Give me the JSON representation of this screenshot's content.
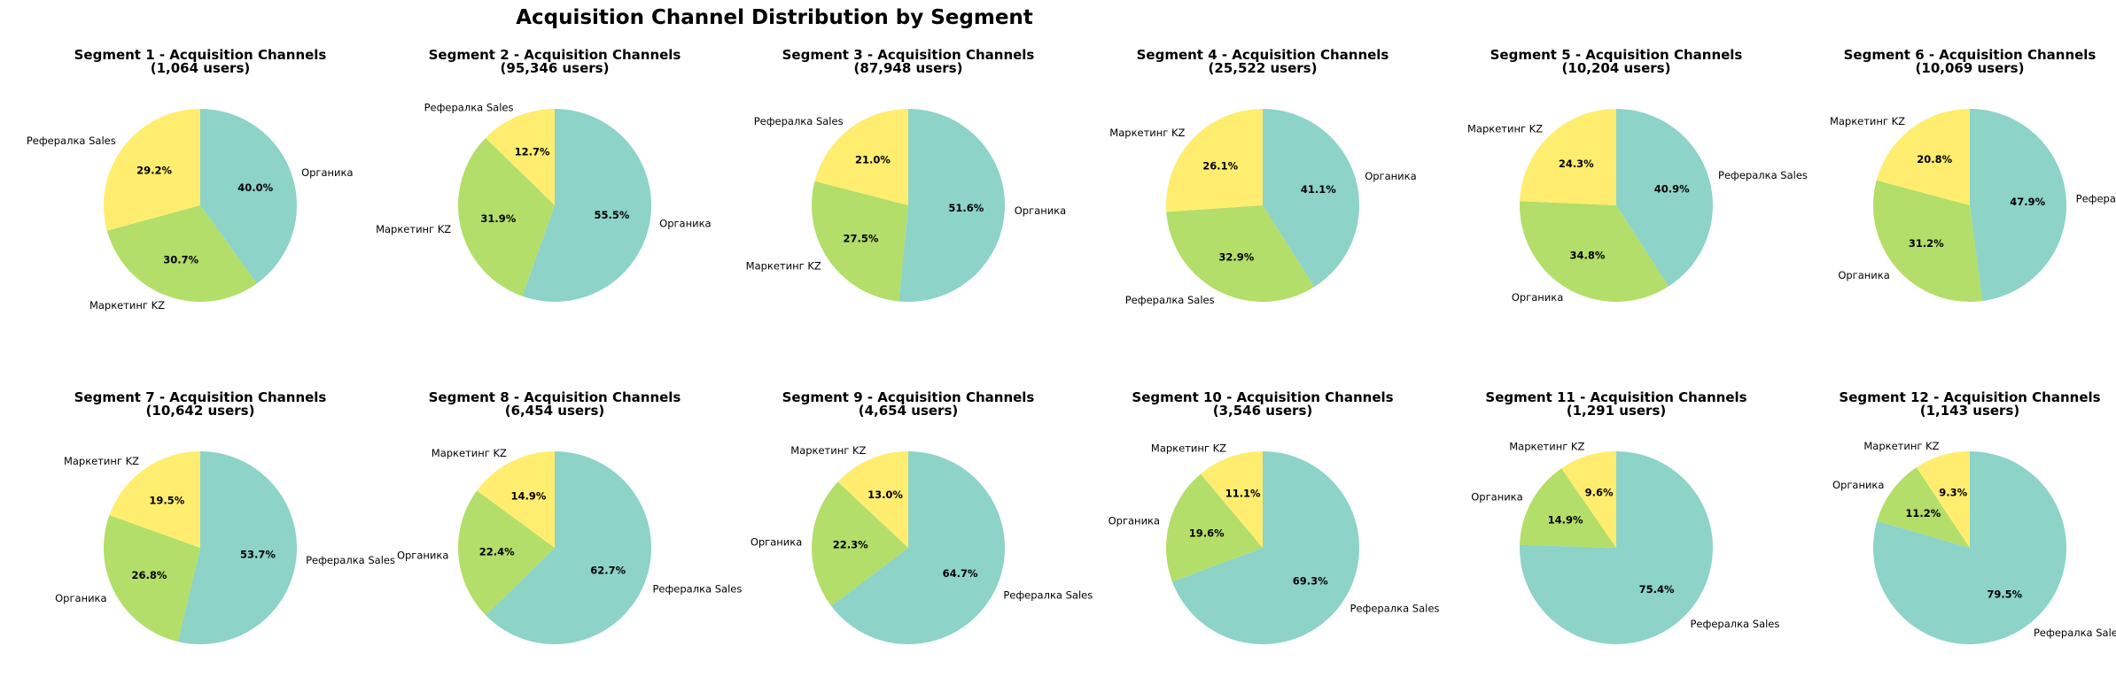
{
  "title": "Acquisition Channel Distribution by Segment",
  "colors": {
    "Органика": "#8dd3c7",
    "Маркетинг KZ": "#b3de69",
    "Рефералка Sales": "#ffed6f",
    "Рефералка Sales (major)": "#8dd3c7"
  },
  "chart_data": [
    {
      "type": "pie",
      "title": "Segment 1 - Acquisition Channels",
      "subtitle": "(1,064 users)",
      "slices": [
        {
          "label": "Органика",
          "value": 40.0,
          "pct": "40.0%",
          "color": "#8dd3c7"
        },
        {
          "label": "Маркетинг KZ",
          "value": 30.7,
          "pct": "30.7%",
          "color": "#b3de69"
        },
        {
          "label": "Рефералка Sales",
          "value": 29.2,
          "pct": "29.2%",
          "color": "#ffed6f"
        }
      ]
    },
    {
      "type": "pie",
      "title": "Segment 2 - Acquisition Channels",
      "subtitle": "(95,346 users)",
      "slices": [
        {
          "label": "Органика",
          "value": 55.5,
          "pct": "55.5%",
          "color": "#8dd3c7"
        },
        {
          "label": "Маркетинг KZ",
          "value": 31.9,
          "pct": "31.9%",
          "color": "#b3de69"
        },
        {
          "label": "Рефералка Sales",
          "value": 12.7,
          "pct": "12.7%",
          "color": "#ffed6f"
        }
      ]
    },
    {
      "type": "pie",
      "title": "Segment 3 - Acquisition Channels",
      "subtitle": "(87,948 users)",
      "slices": [
        {
          "label": "Органика",
          "value": 51.6,
          "pct": "51.6%",
          "color": "#8dd3c7"
        },
        {
          "label": "Маркетинг KZ",
          "value": 27.5,
          "pct": "27.5%",
          "color": "#b3de69"
        },
        {
          "label": "Рефералка Sales",
          "value": 21.0,
          "pct": "21.0%",
          "color": "#ffed6f"
        }
      ]
    },
    {
      "type": "pie",
      "title": "Segment 4 - Acquisition Channels",
      "subtitle": "(25,522 users)",
      "slices": [
        {
          "label": "Органика",
          "value": 41.1,
          "pct": "41.1%",
          "color": "#8dd3c7"
        },
        {
          "label": "Рефералка Sales",
          "value": 32.9,
          "pct": "32.9%",
          "color": "#b3de69"
        },
        {
          "label": "Маркетинг KZ",
          "value": 26.1,
          "pct": "26.1%",
          "color": "#ffed6f"
        }
      ]
    },
    {
      "type": "pie",
      "title": "Segment 5 - Acquisition Channels",
      "subtitle": "(10,204 users)",
      "slices": [
        {
          "label": "Рефералка Sales",
          "value": 40.9,
          "pct": "40.9%",
          "color": "#8dd3c7"
        },
        {
          "label": "Органика",
          "value": 34.8,
          "pct": "34.8%",
          "color": "#b3de69"
        },
        {
          "label": "Маркетинг KZ",
          "value": 24.3,
          "pct": "24.3%",
          "color": "#ffed6f"
        }
      ]
    },
    {
      "type": "pie",
      "title": "Segment 6 - Acquisition Channels",
      "subtitle": "(10,069 users)",
      "slices": [
        {
          "label": "Рефералка Sales",
          "value": 47.9,
          "pct": "47.9%",
          "color": "#8dd3c7"
        },
        {
          "label": "Органика",
          "value": 31.2,
          "pct": "31.2%",
          "color": "#b3de69"
        },
        {
          "label": "Маркетинг KZ",
          "value": 20.8,
          "pct": "20.8%",
          "color": "#ffed6f"
        }
      ]
    },
    {
      "type": "pie",
      "title": "Segment 7 - Acquisition Channels",
      "subtitle": "(10,642 users)",
      "slices": [
        {
          "label": "Рефералка Sales",
          "value": 53.7,
          "pct": "53.7%",
          "color": "#8dd3c7"
        },
        {
          "label": "Органика",
          "value": 26.8,
          "pct": "26.8%",
          "color": "#b3de69"
        },
        {
          "label": "Маркетинг KZ",
          "value": 19.5,
          "pct": "19.5%",
          "color": "#ffed6f"
        }
      ]
    },
    {
      "type": "pie",
      "title": "Segment 8 - Acquisition Channels",
      "subtitle": "(6,454 users)",
      "slices": [
        {
          "label": "Рефералка Sales",
          "value": 62.7,
          "pct": "62.7%",
          "color": "#8dd3c7"
        },
        {
          "label": "Органика",
          "value": 22.4,
          "pct": "22.4%",
          "color": "#b3de69"
        },
        {
          "label": "Маркетинг KZ",
          "value": 14.9,
          "pct": "14.9%",
          "color": "#ffed6f"
        }
      ]
    },
    {
      "type": "pie",
      "title": "Segment 9 - Acquisition Channels",
      "subtitle": "(4,654 users)",
      "slices": [
        {
          "label": "Рефералка Sales",
          "value": 64.7,
          "pct": "64.7%",
          "color": "#8dd3c7"
        },
        {
          "label": "Органика",
          "value": 22.3,
          "pct": "22.3%",
          "color": "#b3de69"
        },
        {
          "label": "Маркетинг KZ",
          "value": 13.0,
          "pct": "13.0%",
          "color": "#ffed6f"
        }
      ]
    },
    {
      "type": "pie",
      "title": "Segment 10 - Acquisition Channels",
      "subtitle": "(3,546 users)",
      "slices": [
        {
          "label": "Рефералка Sales",
          "value": 69.3,
          "pct": "69.3%",
          "color": "#8dd3c7"
        },
        {
          "label": "Органика",
          "value": 19.6,
          "pct": "19.6%",
          "color": "#b3de69"
        },
        {
          "label": "Маркетинг KZ",
          "value": 11.1,
          "pct": "11.1%",
          "color": "#ffed6f"
        }
      ]
    },
    {
      "type": "pie",
      "title": "Segment 11 - Acquisition Channels",
      "subtitle": "(1,291 users)",
      "slices": [
        {
          "label": "Рефералка Sales",
          "value": 75.4,
          "pct": "75.4%",
          "color": "#8dd3c7"
        },
        {
          "label": "Органика",
          "value": 14.9,
          "pct": "14.9%",
          "color": "#b3de69"
        },
        {
          "label": "Маркетинг KZ",
          "value": 9.6,
          "pct": "9.6%",
          "color": "#ffed6f"
        }
      ]
    },
    {
      "type": "pie",
      "title": "Segment 12 - Acquisition Channels",
      "subtitle": "(1,143 users)",
      "slices": [
        {
          "label": "Рефералка Sales",
          "value": 79.5,
          "pct": "79.5%",
          "color": "#8dd3c7"
        },
        {
          "label": "Органика",
          "value": 11.2,
          "pct": "11.2%",
          "color": "#b3de69"
        },
        {
          "label": "Маркетинг KZ",
          "value": 9.3,
          "pct": "9.3%",
          "color": "#ffed6f"
        }
      ]
    }
  ]
}
